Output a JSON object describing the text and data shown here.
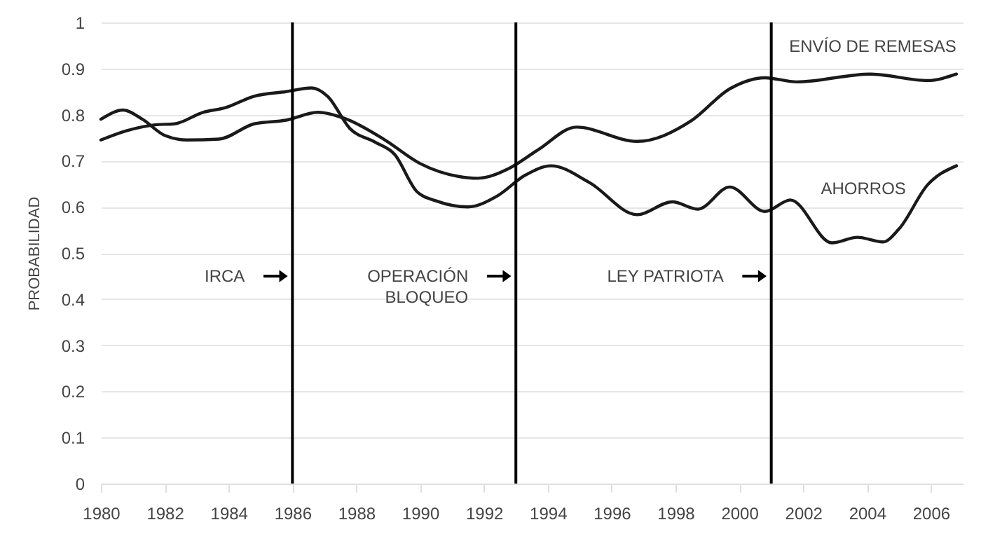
{
  "chart_data": {
    "type": "line",
    "ylabel": "PROBABILIDAD",
    "xlim": [
      1980,
      2007
    ],
    "xticks": [
      1980,
      1982,
      1984,
      1986,
      1988,
      1990,
      1992,
      1994,
      1996,
      1998,
      2000,
      2002,
      2004,
      2006
    ],
    "ylim": [
      0,
      1
    ],
    "yticks": [
      0,
      0.1,
      0.2,
      0.3,
      0.4,
      0.5,
      0.6,
      0.7,
      0.8,
      0.9,
      1
    ],
    "grid": "y",
    "legend": false,
    "series": [
      {
        "name": "ENVÍO DE REMESAS",
        "color": "#1a1a1a",
        "x": [
          1980,
          1980.7,
          1981.3,
          1982,
          1982.7,
          1983.7,
          1984.8,
          1985.8,
          1986.8,
          1987.7,
          1988.9,
          1990,
          1991.2,
          1991.8,
          1992.8,
          1993.7,
          1994.9,
          1996.8,
          1998.5,
          1999.7,
          2000.8,
          2001.8,
          2004.1,
          2005.9,
          2006.8
        ],
        "values": [
          0.79,
          0.81,
          0.79,
          0.755,
          0.745,
          0.747,
          0.78,
          0.788,
          0.805,
          0.79,
          0.745,
          0.694,
          0.666,
          0.662,
          0.684,
          0.724,
          0.773,
          0.742,
          0.787,
          0.856,
          0.88,
          0.871,
          0.888,
          0.874,
          0.888
        ]
      },
      {
        "name": "AHORROS",
        "color": "#1a1a1a",
        "x": [
          1980,
          1980.8,
          1981.7,
          1982.3,
          1983.2,
          1983.9,
          1984.8,
          1985.8,
          1986.6,
          1987.1,
          1987.8,
          1988.6,
          1989.2,
          1989.9,
          1990.5,
          1991.5,
          1992.4,
          1993.3,
          1994.1,
          1995.3,
          1996.8,
          1997.9,
          1998.7,
          1999.7,
          2000.8,
          2001.6,
          2002.9,
          2003.7,
          2004.5,
          2005,
          2005.9,
          2006.8
        ],
        "values": [
          0.745,
          0.765,
          0.778,
          0.78,
          0.805,
          0.815,
          0.84,
          0.85,
          0.858,
          0.84,
          0.77,
          0.74,
          0.714,
          0.633,
          0.613,
          0.6,
          0.623,
          0.669,
          0.689,
          0.653,
          0.583,
          0.611,
          0.595,
          0.643,
          0.59,
          0.615,
          0.522,
          0.534,
          0.524,
          0.552,
          0.648,
          0.689
        ]
      }
    ],
    "ref_lines": [
      {
        "axis": "x",
        "value": 1986,
        "label": "IRCA",
        "color": "#000000"
      },
      {
        "axis": "x",
        "value": 1993,
        "label": "OPERACIÓN\nBLOQUEO",
        "color": "#000000"
      },
      {
        "axis": "x",
        "value": 2001,
        "label": "LEY PATRIOTA",
        "color": "#000000"
      }
    ]
  }
}
